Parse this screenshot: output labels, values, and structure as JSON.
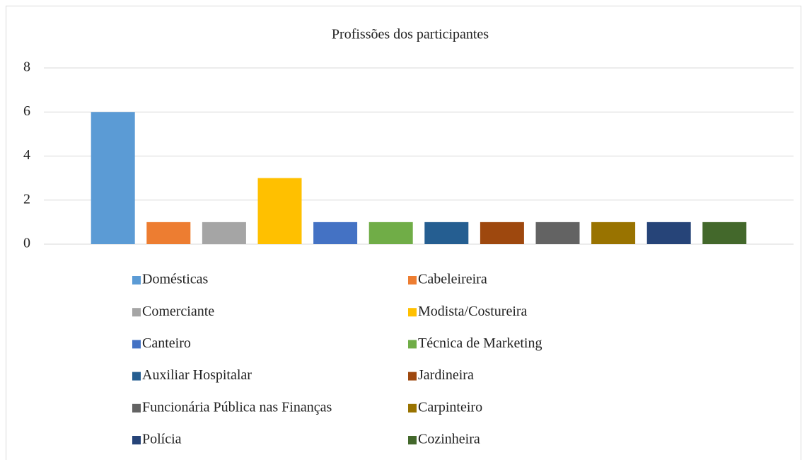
{
  "chart_data": {
    "type": "bar",
    "title": "Profissões dos participantes",
    "categories": [
      null
    ],
    "series": [
      {
        "name": "Domésticas",
        "color": "#5b9bd5",
        "values": [
          6
        ]
      },
      {
        "name": "Cabeleireira",
        "color": "#ed7d31",
        "values": [
          1
        ]
      },
      {
        "name": "Comerciante",
        "color": "#a5a5a5",
        "values": [
          1
        ]
      },
      {
        "name": "Modista/Costureira",
        "color": "#ffc000",
        "values": [
          3
        ]
      },
      {
        "name": "Canteiro",
        "color": "#4472c4",
        "values": [
          1
        ]
      },
      {
        "name": "Técnica de Marketing",
        "color": "#70ad47",
        "values": [
          1
        ]
      },
      {
        "name": "Auxiliar Hospitalar",
        "color": "#255e91",
        "values": [
          1
        ]
      },
      {
        "name": "Jardineira",
        "color": "#9e480e",
        "values": [
          1
        ]
      },
      {
        "name": "Funcionária Pública nas Finanças",
        "color": "#636363",
        "values": [
          1
        ]
      },
      {
        "name": "Carpinteiro",
        "color": "#997300",
        "values": [
          1
        ]
      },
      {
        "name": "Polícia",
        "color": "#264478",
        "values": [
          1
        ]
      },
      {
        "name": "Cozinheira",
        "color": "#43682b",
        "values": [
          1
        ]
      }
    ],
    "ylim": [
      0,
      8
    ],
    "yticks": [
      0,
      2,
      4,
      6,
      8
    ],
    "grid": true,
    "legend": "bottom"
  }
}
